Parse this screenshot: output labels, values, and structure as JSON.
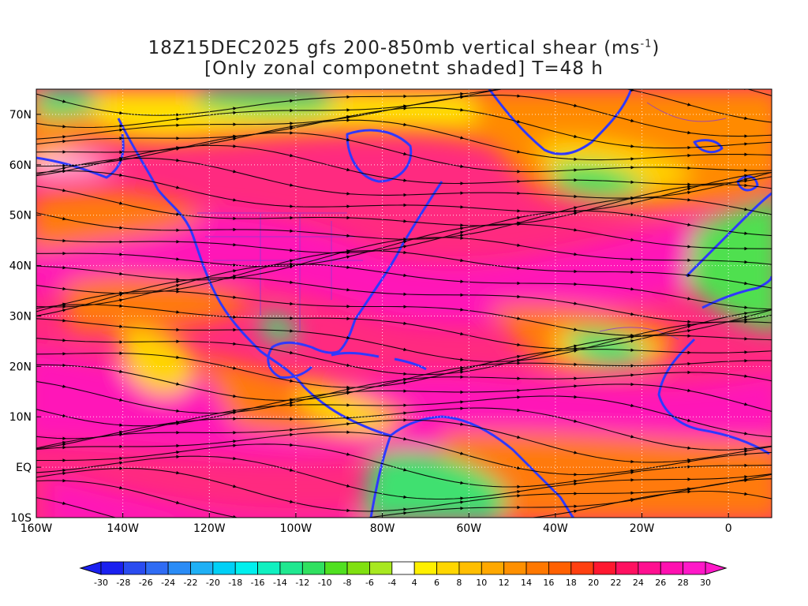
{
  "title": {
    "line1_prefix": "18Z15DEC2025 gfs 200-850mb vertical shear (ms",
    "line1_sup": "-1",
    "line1_suffix": ")",
    "line2": "[Only zonal componetnt shaded] T=48 h"
  },
  "axes": {
    "lon_labels": [
      "160W",
      "140W",
      "120W",
      "100W",
      "80W",
      "60W",
      "40W",
      "20W",
      "0"
    ],
    "lon_values": [
      -160,
      -140,
      -120,
      -100,
      -80,
      -60,
      -40,
      -20,
      0
    ],
    "lat_labels": [
      "70N",
      "60N",
      "50N",
      "40N",
      "30N",
      "20N",
      "10N",
      "EQ",
      "10S"
    ],
    "lat_values": [
      70,
      60,
      50,
      40,
      30,
      20,
      10,
      0,
      -10
    ],
    "lon_range": [
      -160,
      10
    ],
    "lat_range": [
      -10,
      75
    ]
  },
  "colorbar": {
    "labels": [
      "-30",
      "-28",
      "-26",
      "-24",
      "-22",
      "-20",
      "-18",
      "-16",
      "-14",
      "-12",
      "-10",
      "-8",
      "-6",
      "-4",
      "4",
      "6",
      "8",
      "10",
      "12",
      "14",
      "16",
      "18",
      "20",
      "22",
      "24",
      "26",
      "28",
      "30"
    ],
    "colors": [
      "#1a20f0",
      "#2a4cf0",
      "#2f6cf4",
      "#2a8cf6",
      "#1fb0f5",
      "#00d0f6",
      "#00f0ee",
      "#10f0c0",
      "#20e890",
      "#30e060",
      "#50e020",
      "#80e010",
      "#a8e820",
      "#ffffff",
      "#fff000",
      "#ffd600",
      "#ffbe00",
      "#ffa800",
      "#ff9000",
      "#ff7800",
      "#ff6000",
      "#ff4010",
      "#ff1830",
      "#ff1060",
      "#ff1090",
      "#ff10b0",
      "#ff18c8"
    ]
  },
  "map": {
    "colors": {
      "shear_max": "#ff18c0",
      "shear_high": "#ff2a60",
      "shear_mid": "#ff7a10",
      "shear_low": "#ffd400",
      "shear_zero": "#ffffff",
      "shear_negative": "#40e070",
      "coast": "#3030ff",
      "streamline": "#000000"
    },
    "grid": "dotted"
  }
}
